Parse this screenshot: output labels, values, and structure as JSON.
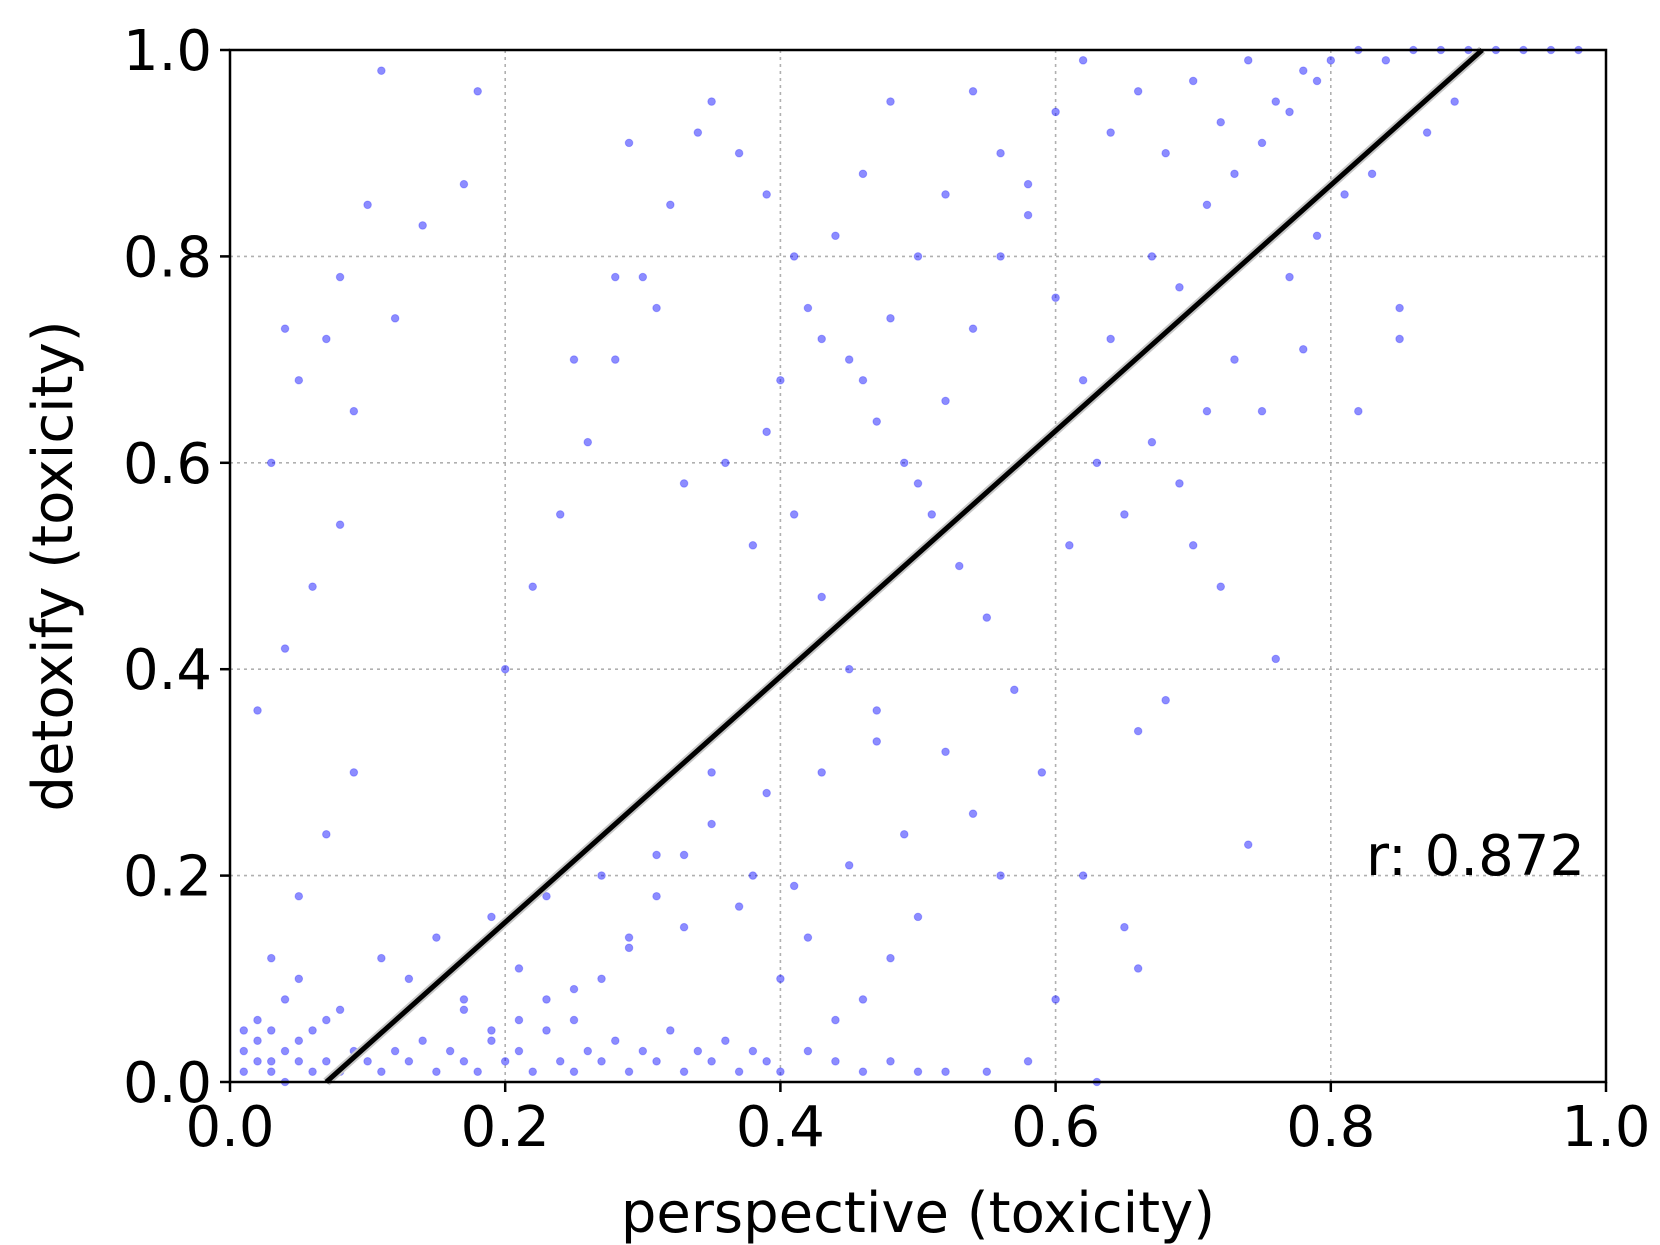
{
  "chart_data": {
    "type": "scatter",
    "title": "",
    "xlabel": "perspective (toxicity)",
    "ylabel": "detoxify (toxicity)",
    "xlim": [
      0.0,
      1.0
    ],
    "ylim": [
      0.0,
      1.0
    ],
    "x_ticks": [
      "0.0",
      "0.2",
      "0.4",
      "0.6",
      "0.8",
      "1.0"
    ],
    "y_ticks": [
      "0.0",
      "0.2",
      "0.4",
      "0.6",
      "0.8",
      "1.0"
    ],
    "grid": true,
    "annotation": "r: 0.872",
    "point_color": "#0000ff",
    "fit_line_color": "#000000",
    "fit_line": {
      "x": [
        0.07,
        0.91
      ],
      "y": [
        0.0,
        1.0
      ]
    },
    "series": [
      {
        "points": [
          [
            0.01,
            0.01
          ],
          [
            0.02,
            0.02
          ],
          [
            0.03,
            0.01
          ],
          [
            0.04,
            0.03
          ],
          [
            0.05,
            0.02
          ],
          [
            0.02,
            0.04
          ],
          [
            0.06,
            0.01
          ],
          [
            0.03,
            0.05
          ],
          [
            0.01,
            0.03
          ],
          [
            0.07,
            0.02
          ],
          [
            0.04,
            0.0
          ],
          [
            0.05,
            0.04
          ],
          [
            0.08,
            0.01
          ],
          [
            0.02,
            0.06
          ],
          [
            0.09,
            0.03
          ],
          [
            0.03,
            0.02
          ],
          [
            0.06,
            0.05
          ],
          [
            0.1,
            0.02
          ],
          [
            0.01,
            0.05
          ],
          [
            0.07,
            0.06
          ],
          [
            0.11,
            0.01
          ],
          [
            0.12,
            0.03
          ],
          [
            0.04,
            0.08
          ],
          [
            0.05,
            0.1
          ],
          [
            0.08,
            0.07
          ],
          [
            0.13,
            0.02
          ],
          [
            0.14,
            0.04
          ],
          [
            0.15,
            0.01
          ],
          [
            0.16,
            0.03
          ],
          [
            0.17,
            0.02
          ],
          [
            0.18,
            0.01
          ],
          [
            0.19,
            0.04
          ],
          [
            0.2,
            0.02
          ],
          [
            0.21,
            0.03
          ],
          [
            0.22,
            0.01
          ],
          [
            0.23,
            0.05
          ],
          [
            0.24,
            0.02
          ],
          [
            0.25,
            0.01
          ],
          [
            0.26,
            0.03
          ],
          [
            0.27,
            0.02
          ],
          [
            0.28,
            0.04
          ],
          [
            0.29,
            0.01
          ],
          [
            0.3,
            0.03
          ],
          [
            0.31,
            0.02
          ],
          [
            0.32,
            0.05
          ],
          [
            0.33,
            0.01
          ],
          [
            0.34,
            0.03
          ],
          [
            0.35,
            0.02
          ],
          [
            0.36,
            0.04
          ],
          [
            0.37,
            0.01
          ],
          [
            0.38,
            0.03
          ],
          [
            0.39,
            0.02
          ],
          [
            0.4,
            0.01
          ],
          [
            0.42,
            0.03
          ],
          [
            0.44,
            0.02
          ],
          [
            0.46,
            0.01
          ],
          [
            0.48,
            0.02
          ],
          [
            0.5,
            0.01
          ],
          [
            0.52,
            0.01
          ],
          [
            0.55,
            0.01
          ],
          [
            0.11,
            0.12
          ],
          [
            0.13,
            0.1
          ],
          [
            0.15,
            0.14
          ],
          [
            0.17,
            0.08
          ],
          [
            0.19,
            0.16
          ],
          [
            0.21,
            0.11
          ],
          [
            0.23,
            0.18
          ],
          [
            0.25,
            0.09
          ],
          [
            0.27,
            0.2
          ],
          [
            0.29,
            0.13
          ],
          [
            0.31,
            0.22
          ],
          [
            0.33,
            0.15
          ],
          [
            0.35,
            0.25
          ],
          [
            0.37,
            0.17
          ],
          [
            0.39,
            0.28
          ],
          [
            0.41,
            0.19
          ],
          [
            0.43,
            0.3
          ],
          [
            0.45,
            0.21
          ],
          [
            0.47,
            0.33
          ],
          [
            0.49,
            0.24
          ],
          [
            0.03,
            0.12
          ],
          [
            0.05,
            0.18
          ],
          [
            0.07,
            0.24
          ],
          [
            0.09,
            0.3
          ],
          [
            0.02,
            0.36
          ],
          [
            0.04,
            0.42
          ],
          [
            0.06,
            0.48
          ],
          [
            0.08,
            0.54
          ],
          [
            0.03,
            0.6
          ],
          [
            0.05,
            0.68
          ],
          [
            0.08,
            0.78
          ],
          [
            0.1,
            0.85
          ],
          [
            0.12,
            0.74
          ],
          [
            0.11,
            0.98
          ],
          [
            0.18,
            0.96
          ],
          [
            0.17,
            0.87
          ],
          [
            0.14,
            0.83
          ],
          [
            0.09,
            0.65
          ],
          [
            0.07,
            0.72
          ],
          [
            0.04,
            0.73
          ],
          [
            0.2,
            0.4
          ],
          [
            0.22,
            0.48
          ],
          [
            0.24,
            0.55
          ],
          [
            0.26,
            0.62
          ],
          [
            0.28,
            0.7
          ],
          [
            0.3,
            0.78
          ],
          [
            0.32,
            0.85
          ],
          [
            0.34,
            0.92
          ],
          [
            0.36,
            0.6
          ],
          [
            0.38,
            0.52
          ],
          [
            0.4,
            0.68
          ],
          [
            0.42,
            0.75
          ],
          [
            0.44,
            0.82
          ],
          [
            0.46,
            0.88
          ],
          [
            0.48,
            0.95
          ],
          [
            0.5,
            0.58
          ],
          [
            0.52,
            0.66
          ],
          [
            0.54,
            0.73
          ],
          [
            0.56,
            0.8
          ],
          [
            0.58,
            0.87
          ],
          [
            0.6,
            0.94
          ],
          [
            0.62,
            0.99
          ],
          [
            0.64,
            0.92
          ],
          [
            0.66,
            0.96
          ],
          [
            0.68,
            0.9
          ],
          [
            0.7,
            0.97
          ],
          [
            0.72,
            0.93
          ],
          [
            0.74,
            0.99
          ],
          [
            0.76,
            0.95
          ],
          [
            0.78,
            0.98
          ],
          [
            0.8,
            0.99
          ],
          [
            0.82,
            1.0
          ],
          [
            0.84,
            0.99
          ],
          [
            0.86,
            1.0
          ],
          [
            0.88,
            1.0
          ],
          [
            0.9,
            1.0
          ],
          [
            0.92,
            1.0
          ],
          [
            0.94,
            1.0
          ],
          [
            0.96,
            1.0
          ],
          [
            0.98,
            1.0
          ],
          [
            0.55,
            0.45
          ],
          [
            0.57,
            0.38
          ],
          [
            0.59,
            0.3
          ],
          [
            0.61,
            0.52
          ],
          [
            0.63,
            0.6
          ],
          [
            0.65,
            0.55
          ],
          [
            0.67,
            0.62
          ],
          [
            0.69,
            0.58
          ],
          [
            0.71,
            0.65
          ],
          [
            0.73,
            0.7
          ],
          [
            0.75,
            0.65
          ],
          [
            0.77,
            0.78
          ],
          [
            0.79,
            0.82
          ],
          [
            0.81,
            0.86
          ],
          [
            0.83,
            0.88
          ],
          [
            0.85,
            0.75
          ],
          [
            0.87,
            0.92
          ],
          [
            0.89,
            0.95
          ],
          [
            0.74,
            0.23
          ],
          [
            0.76,
            0.41
          ],
          [
            0.72,
            0.48
          ],
          [
            0.7,
            0.52
          ],
          [
            0.68,
            0.37
          ],
          [
            0.66,
            0.34
          ],
          [
            0.65,
            0.15
          ],
          [
            0.66,
            0.11
          ],
          [
            0.62,
            0.2
          ],
          [
            0.6,
            0.08
          ],
          [
            0.58,
            0.02
          ],
          [
            0.63,
            0.0
          ],
          [
            0.25,
            0.7
          ],
          [
            0.28,
            0.78
          ],
          [
            0.29,
            0.91
          ],
          [
            0.31,
            0.75
          ],
          [
            0.33,
            0.58
          ],
          [
            0.39,
            0.63
          ],
          [
            0.41,
            0.55
          ],
          [
            0.43,
            0.47
          ],
          [
            0.45,
            0.4
          ],
          [
            0.47,
            0.36
          ],
          [
            0.35,
            0.3
          ],
          [
            0.33,
            0.22
          ],
          [
            0.31,
            0.18
          ],
          [
            0.29,
            0.14
          ],
          [
            0.27,
            0.1
          ],
          [
            0.25,
            0.06
          ],
          [
            0.23,
            0.08
          ],
          [
            0.21,
            0.06
          ],
          [
            0.19,
            0.05
          ],
          [
            0.17,
            0.07
          ],
          [
            0.53,
            0.5
          ],
          [
            0.51,
            0.55
          ],
          [
            0.49,
            0.6
          ],
          [
            0.47,
            0.64
          ],
          [
            0.45,
            0.7
          ],
          [
            0.43,
            0.72
          ],
          [
            0.41,
            0.8
          ],
          [
            0.39,
            0.86
          ],
          [
            0.37,
            0.9
          ],
          [
            0.35,
            0.95
          ],
          [
            0.56,
            0.2
          ],
          [
            0.54,
            0.26
          ],
          [
            0.52,
            0.32
          ],
          [
            0.5,
            0.16
          ],
          [
            0.48,
            0.12
          ],
          [
            0.46,
            0.08
          ],
          [
            0.44,
            0.06
          ],
          [
            0.42,
            0.14
          ],
          [
            0.4,
            0.1
          ],
          [
            0.38,
            0.2
          ],
          [
            0.64,
            0.72
          ],
          [
            0.62,
            0.68
          ],
          [
            0.6,
            0.76
          ],
          [
            0.58,
            0.84
          ],
          [
            0.56,
            0.9
          ],
          [
            0.54,
            0.96
          ],
          [
            0.52,
            0.86
          ],
          [
            0.5,
            0.8
          ],
          [
            0.48,
            0.74
          ],
          [
            0.46,
            0.68
          ],
          [
            0.85,
            0.72
          ],
          [
            0.82,
            0.65
          ],
          [
            0.78,
            0.71
          ],
          [
            0.69,
            0.77
          ],
          [
            0.67,
            0.8
          ],
          [
            0.71,
            0.85
          ],
          [
            0.73,
            0.88
          ],
          [
            0.75,
            0.91
          ],
          [
            0.77,
            0.94
          ],
          [
            0.79,
            0.97
          ]
        ]
      }
    ]
  }
}
